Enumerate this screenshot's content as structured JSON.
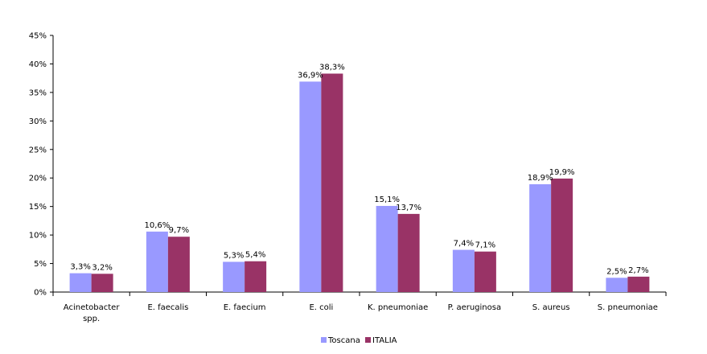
{
  "chart_data": {
    "type": "bar",
    "categories": [
      "Acinetobacter spp.",
      "E. faecalis",
      "E. faecium",
      "E. coli",
      "K. pneumoniae",
      "P. aeruginosa",
      "S. aureus",
      "S. pneumoniae"
    ],
    "series": [
      {
        "name": "Toscana",
        "color": "#9999ff",
        "values": [
          3.3,
          10.6,
          5.3,
          36.9,
          15.1,
          7.4,
          18.9,
          2.5
        ],
        "labels": [
          "3,3%",
          "10,6%",
          "5,3%",
          "36,9%",
          "15,1%",
          "7,4%",
          "18,9%",
          "2,5%"
        ]
      },
      {
        "name": "ITALIA",
        "color": "#993366",
        "values": [
          3.2,
          9.7,
          5.4,
          38.3,
          13.7,
          7.1,
          19.9,
          2.7
        ],
        "labels": [
          "3,2%",
          "9,7%",
          "5,4%",
          "38,3%",
          "13,7%",
          "7,1%",
          "19,9%",
          "2,7%"
        ]
      }
    ],
    "y_ticks": [
      "0%",
      "5%",
      "10%",
      "15%",
      "20%",
      "25%",
      "30%",
      "35%",
      "40%",
      "45%"
    ],
    "ylim": [
      0,
      45
    ],
    "grid": false,
    "legend": "bottom"
  }
}
